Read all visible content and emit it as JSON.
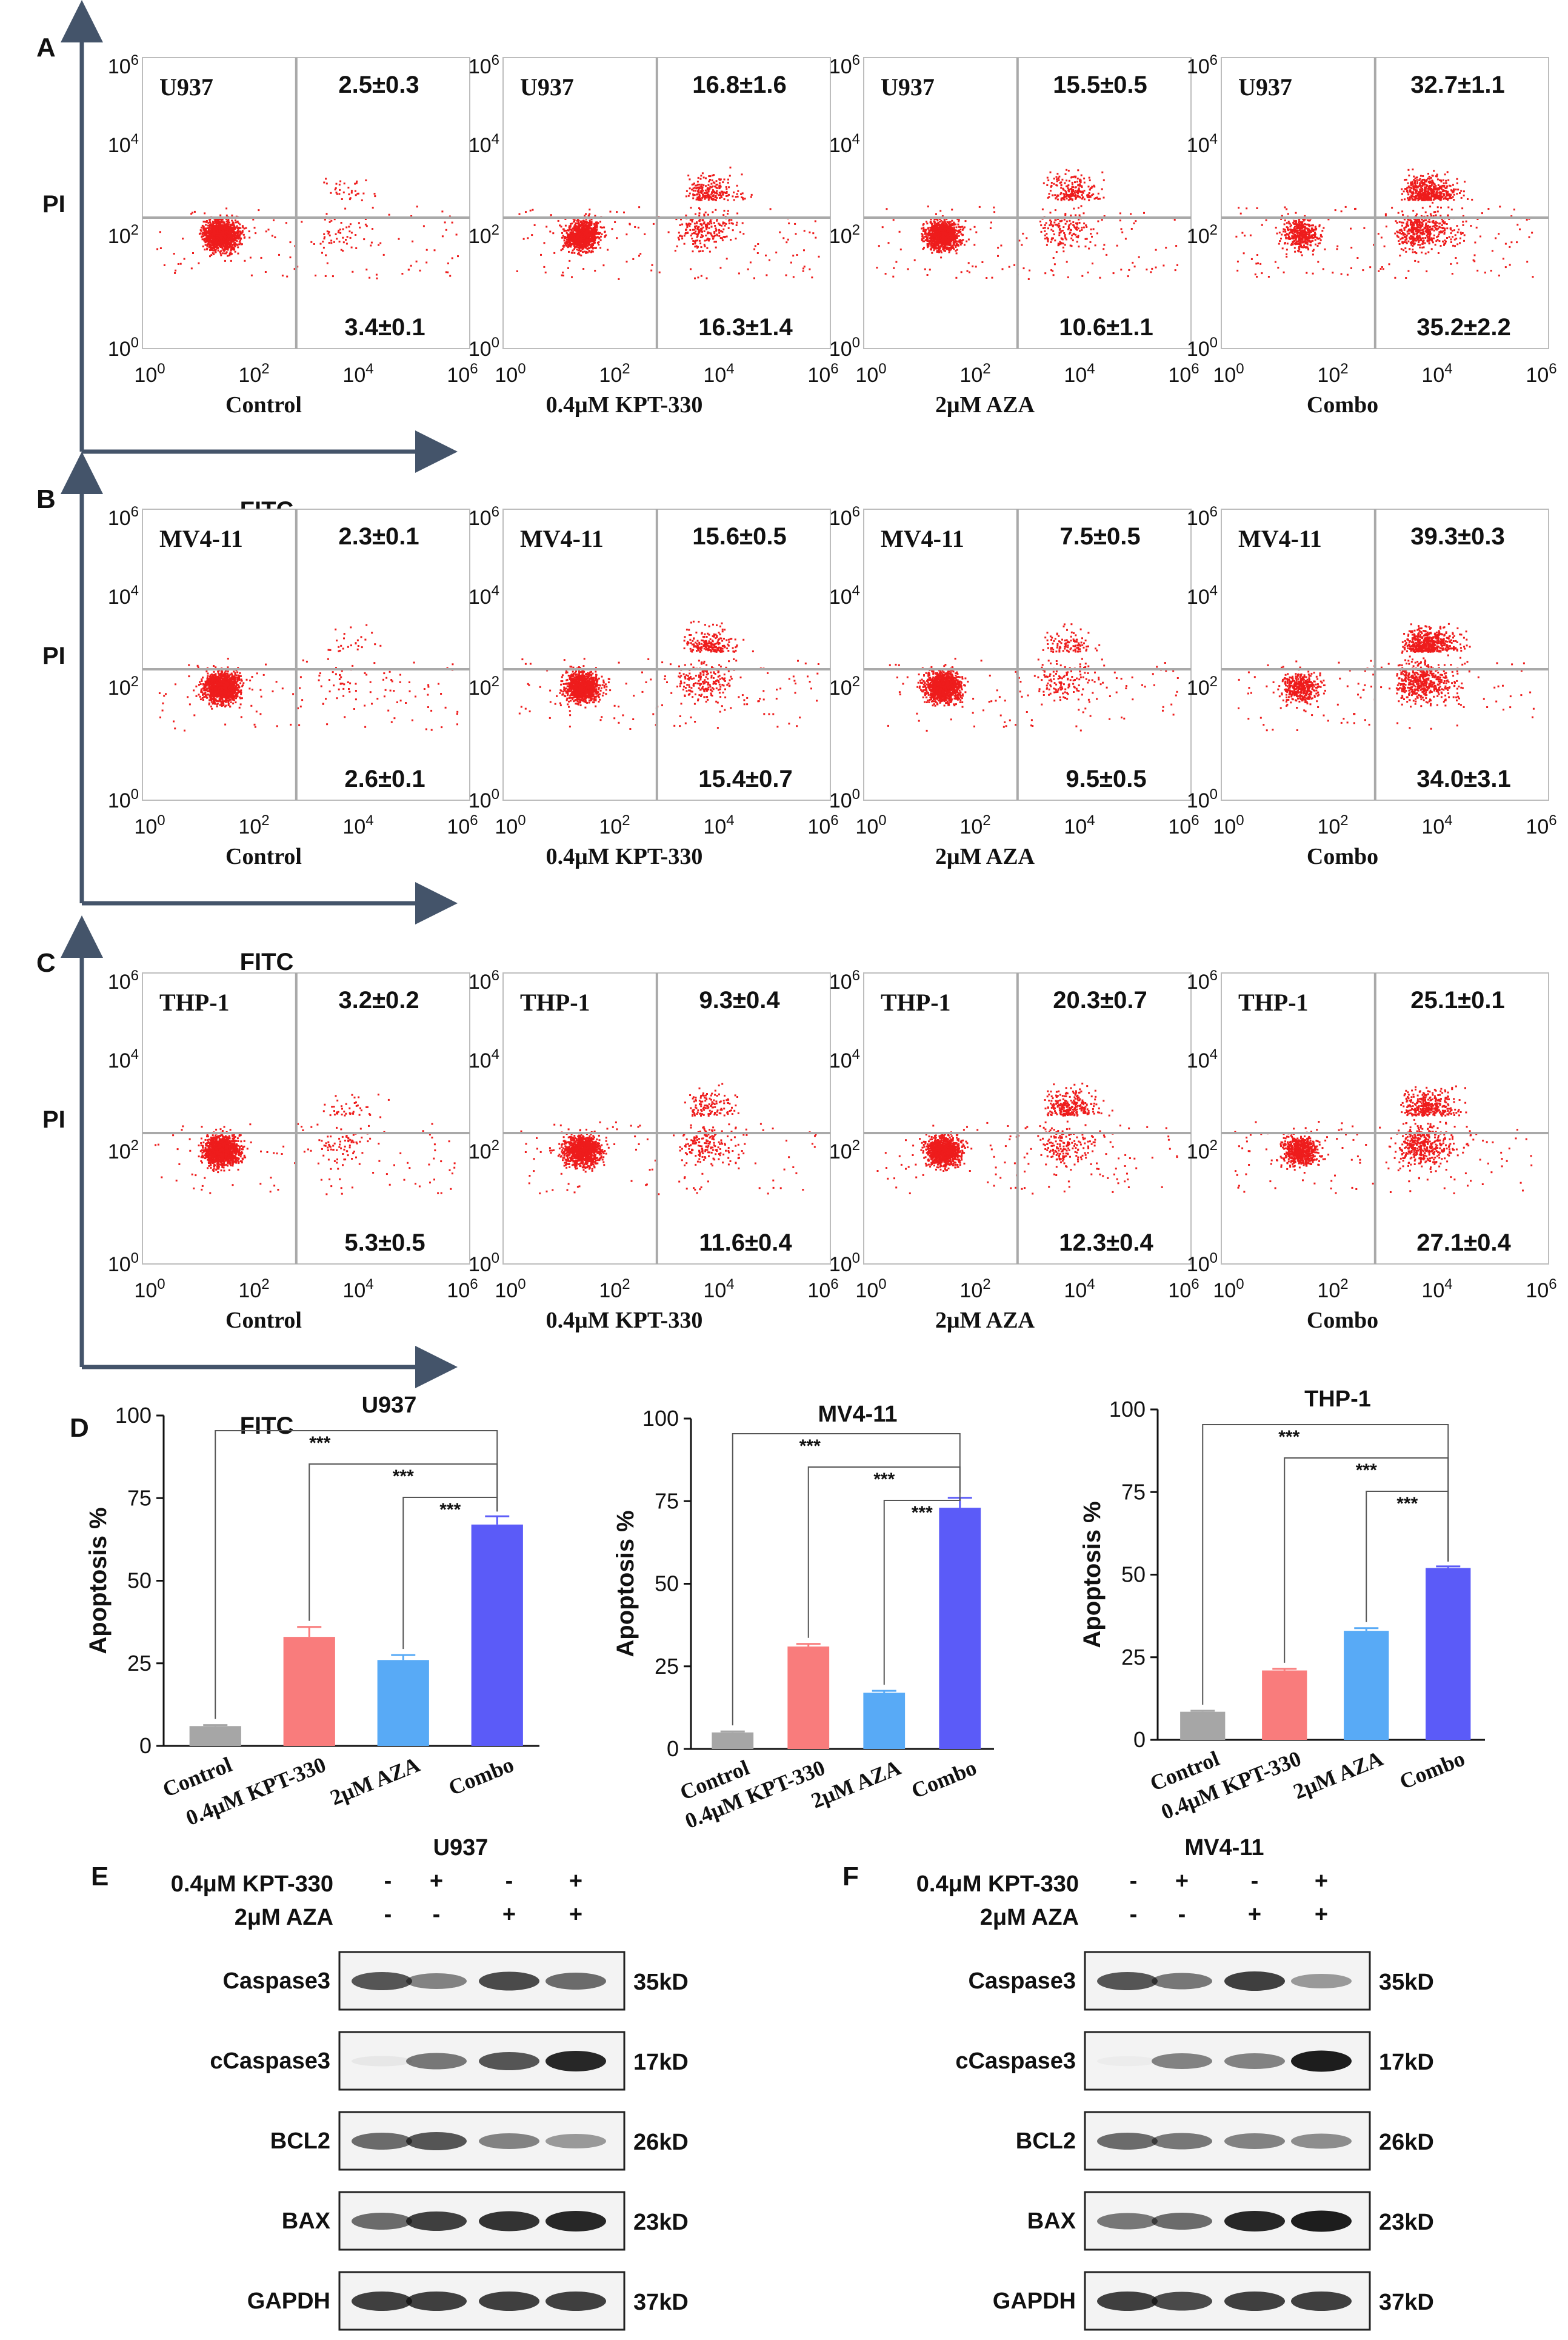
{
  "colors": {
    "dots": "#ee1c1c",
    "gate": "#a9a9a9",
    "axisArrow": "#44546a",
    "frame": "#bdbdbd",
    "control": "#a6a6a6",
    "kpt": "#f97c7c",
    "aza": "#58aaf6",
    "combo": "#5b5bf8"
  },
  "flow": {
    "panels": [
      {
        "letter": "A",
        "ylabel": "PI",
        "xlabel": "FITC",
        "ticks": [
          "10",
          "10",
          "10",
          "10"
        ],
        "exps": [
          "0",
          "2",
          "4",
          "6"
        ],
        "plots": [
          {
            "cell": "U937",
            "cond": "Control",
            "ur": "2.5±0.3",
            "lr": "3.4±0.1"
          },
          {
            "cell": "U937",
            "cond": "0.4μM KPT-330",
            "ur": "16.8±1.6",
            "lr": "16.3±1.4"
          },
          {
            "cell": "U937",
            "cond": "2μM AZA",
            "ur": "15.5±0.5",
            "lr": "10.6±1.1"
          },
          {
            "cell": "U937",
            "cond": "Combo",
            "ur": "32.7±1.1",
            "lr": "35.2±2.2"
          }
        ]
      },
      {
        "letter": "B",
        "ylabel": "PI",
        "xlabel": "FITC",
        "ticks": [
          "10",
          "10",
          "10",
          "10"
        ],
        "exps": [
          "0",
          "2",
          "4",
          "6"
        ],
        "plots": [
          {
            "cell": "MV4-11",
            "cond": "Control",
            "ur": "2.3±0.1",
            "lr": "2.6±0.1"
          },
          {
            "cell": "MV4-11",
            "cond": "0.4μM KPT-330",
            "ur": "15.6±0.5",
            "lr": "15.4±0.7"
          },
          {
            "cell": "MV4-11",
            "cond": "2μM AZA",
            "ur": "7.5±0.5",
            "lr": "9.5±0.5"
          },
          {
            "cell": "MV4-11",
            "cond": "Combo",
            "ur": "39.3±0.3",
            "lr": "34.0±3.1"
          }
        ]
      },
      {
        "letter": "C",
        "ylabel": "PI",
        "xlabel": "FITC",
        "ticks": [
          "10",
          "10",
          "10",
          "10"
        ],
        "exps": [
          "0",
          "2",
          "4",
          "6"
        ],
        "plots": [
          {
            "cell": "THP-1",
            "cond": "Control",
            "ur": "3.2±0.2",
            "lr": "5.3±0.5"
          },
          {
            "cell": "THP-1",
            "cond": "0.4μM KPT-330",
            "ur": "9.3±0.4",
            "lr": "11.6±0.4"
          },
          {
            "cell": "THP-1",
            "cond": "2μM AZA",
            "ur": "20.3±0.7",
            "lr": "12.3±0.4"
          },
          {
            "cell": "THP-1",
            "cond": "Combo",
            "ur": "25.1±0.1",
            "lr": "27.1±0.4"
          }
        ]
      }
    ]
  },
  "chart_data": [
    {
      "type": "bar",
      "title": "U937",
      "ylabel": "Apoptosis %",
      "ylim": [
        0,
        100
      ],
      "yticks": [
        0,
        25,
        50,
        75,
        100
      ],
      "categories": [
        "Control",
        "0.4μM KPT-330",
        "2μM AZA",
        "Combo"
      ],
      "values": [
        6,
        33,
        26,
        67
      ],
      "errors": [
        0.3,
        3,
        1.5,
        2.5
      ],
      "significance": [
        [
          "Control",
          "Combo",
          "***"
        ],
        [
          "0.4μM KPT-330",
          "Combo",
          "***"
        ],
        [
          "2μM AZA",
          "Combo",
          "***"
        ]
      ]
    },
    {
      "type": "bar",
      "title": "MV4-11",
      "ylabel": "Apoptosis %",
      "ylim": [
        0,
        100
      ],
      "yticks": [
        0,
        25,
        50,
        75,
        100
      ],
      "categories": [
        "Control",
        "0.4μM KPT-330",
        "2μM AZA",
        "Combo"
      ],
      "values": [
        5,
        31,
        17,
        73
      ],
      "errors": [
        0.3,
        0.8,
        0.6,
        3
      ],
      "significance": [
        [
          "Control",
          "Combo",
          "***"
        ],
        [
          "0.4μM KPT-330",
          "Combo",
          "***"
        ],
        [
          "2μM AZA",
          "Combo",
          "***"
        ]
      ]
    },
    {
      "type": "bar",
      "title": "THP-1",
      "ylabel": "Apoptosis %",
      "ylim": [
        0,
        100
      ],
      "yticks": [
        0,
        25,
        50,
        75,
        100
      ],
      "categories": [
        "Control",
        "0.4μM KPT-330",
        "2μM AZA",
        "Combo"
      ],
      "values": [
        8.5,
        21,
        33,
        52
      ],
      "errors": [
        0.3,
        0.5,
        0.8,
        0.5
      ],
      "significance": [
        [
          "Control",
          "Combo",
          "***"
        ],
        [
          "0.4μM KPT-330",
          "Combo",
          "***"
        ],
        [
          "2μM AZA",
          "Combo",
          "***"
        ]
      ]
    }
  ],
  "panelD": {
    "letter": "D"
  },
  "blots": [
    {
      "letter": "E",
      "title": "U937",
      "treatments": [
        {
          "label": "0.4μM KPT-330",
          "signs": [
            "-",
            "+",
            "-",
            "+"
          ]
        },
        {
          "label": "2μM AZA",
          "signs": [
            "-",
            "-",
            "+",
            "+"
          ]
        }
      ],
      "rows": [
        {
          "protein": "Caspase3",
          "size": "35kD",
          "band": [
            0.7,
            0.5,
            0.75,
            0.6
          ]
        },
        {
          "protein": "cCaspase3",
          "size": "17kD",
          "band": [
            0.05,
            0.55,
            0.7,
            0.9
          ]
        },
        {
          "protein": "BCL2",
          "size": "26kD",
          "band": [
            0.6,
            0.7,
            0.5,
            0.4
          ]
        },
        {
          "protein": "BAX",
          "size": "23kD",
          "band": [
            0.6,
            0.8,
            0.85,
            0.9
          ]
        },
        {
          "protein": "GAPDH",
          "size": "37kD",
          "band": [
            0.8,
            0.8,
            0.8,
            0.8
          ]
        }
      ]
    },
    {
      "letter": "F",
      "title": "MV4-11",
      "treatments": [
        {
          "label": "0.4μM KPT-330",
          "signs": [
            "-",
            "+",
            "-",
            "+"
          ]
        },
        {
          "label": "2μM AZA",
          "signs": [
            "-",
            "-",
            "+",
            "+"
          ]
        }
      ],
      "rows": [
        {
          "protein": "Caspase3",
          "size": "35kD",
          "band": [
            0.7,
            0.55,
            0.8,
            0.4
          ]
        },
        {
          "protein": "cCaspase3",
          "size": "17kD",
          "band": [
            0.02,
            0.5,
            0.5,
            0.95
          ]
        },
        {
          "protein": "BCL2",
          "size": "26kD",
          "band": [
            0.6,
            0.55,
            0.5,
            0.45
          ]
        },
        {
          "protein": "BAX",
          "size": "23kD",
          "band": [
            0.55,
            0.6,
            0.9,
            0.95
          ]
        },
        {
          "protein": "GAPDH",
          "size": "37kD",
          "band": [
            0.8,
            0.75,
            0.8,
            0.8
          ]
        }
      ]
    }
  ]
}
